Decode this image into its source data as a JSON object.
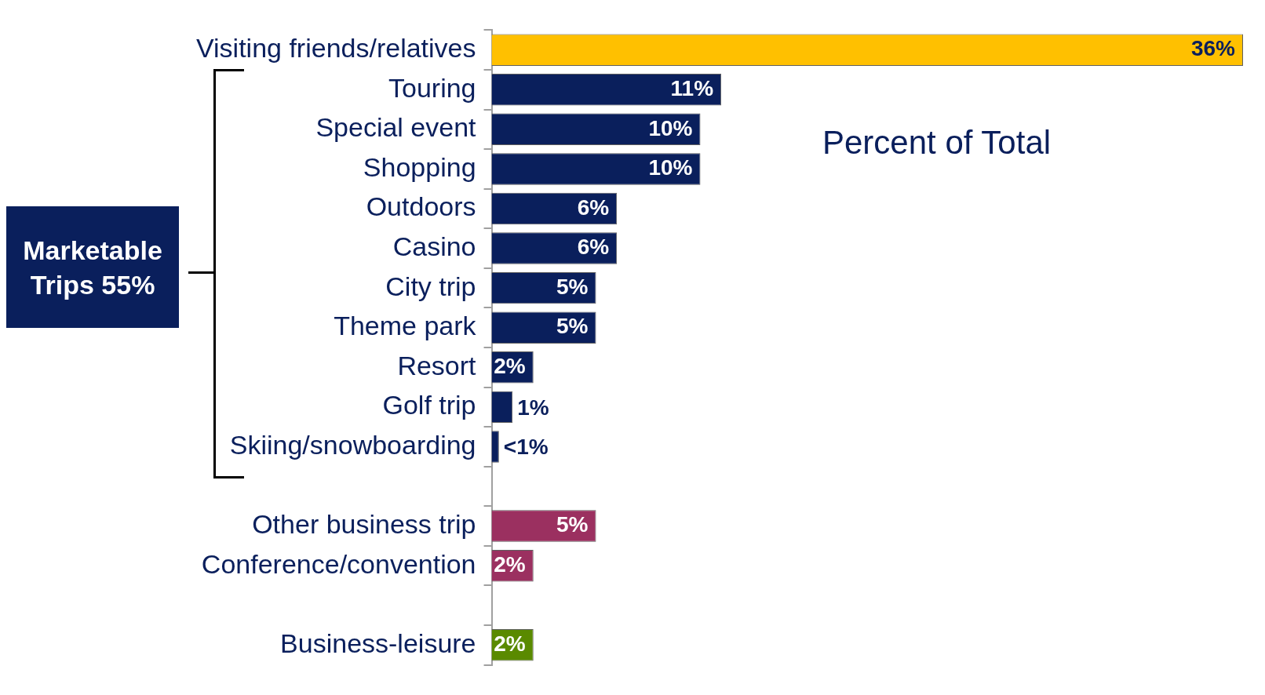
{
  "chart_data": {
    "type": "bar",
    "orientation": "horizontal",
    "categories": [
      "Visiting friends/relatives",
      "Touring",
      "Special event",
      "Shopping",
      "Outdoors",
      "Casino",
      "City trip",
      "Theme park",
      "Resort",
      "Golf trip",
      "Skiing/snowboarding",
      null,
      "Other business trip",
      "Conference/convention",
      null,
      "Business-leisure"
    ],
    "values": [
      36,
      11,
      10,
      10,
      6,
      6,
      5,
      5,
      2,
      1,
      0.35,
      null,
      5,
      2,
      null,
      2
    ],
    "colors": [
      "#ffc000",
      "#0a1f5c",
      "#0a1f5c",
      "#0a1f5c",
      "#0a1f5c",
      "#0a1f5c",
      "#0a1f5c",
      "#0a1f5c",
      "#0a1f5c",
      "#0a1f5c",
      "#0a1f5c",
      "#0a1f5c",
      "#9b3060",
      "#9b3060",
      "#5a8a00",
      "#5a8a00"
    ],
    "value_labels": [
      "36%",
      "11%",
      "10%",
      "10%",
      "6%",
      "6%",
      "5%",
      "5%",
      "2%",
      "1%",
      "<1%",
      null,
      "5%",
      "2%",
      null,
      "2%"
    ],
    "xlim": [
      0,
      36
    ],
    "tick_labels": "y",
    "grid": false,
    "legend": false,
    "annotations": [
      "Percent of Total",
      "Marketable Trips 55%"
    ]
  }
}
